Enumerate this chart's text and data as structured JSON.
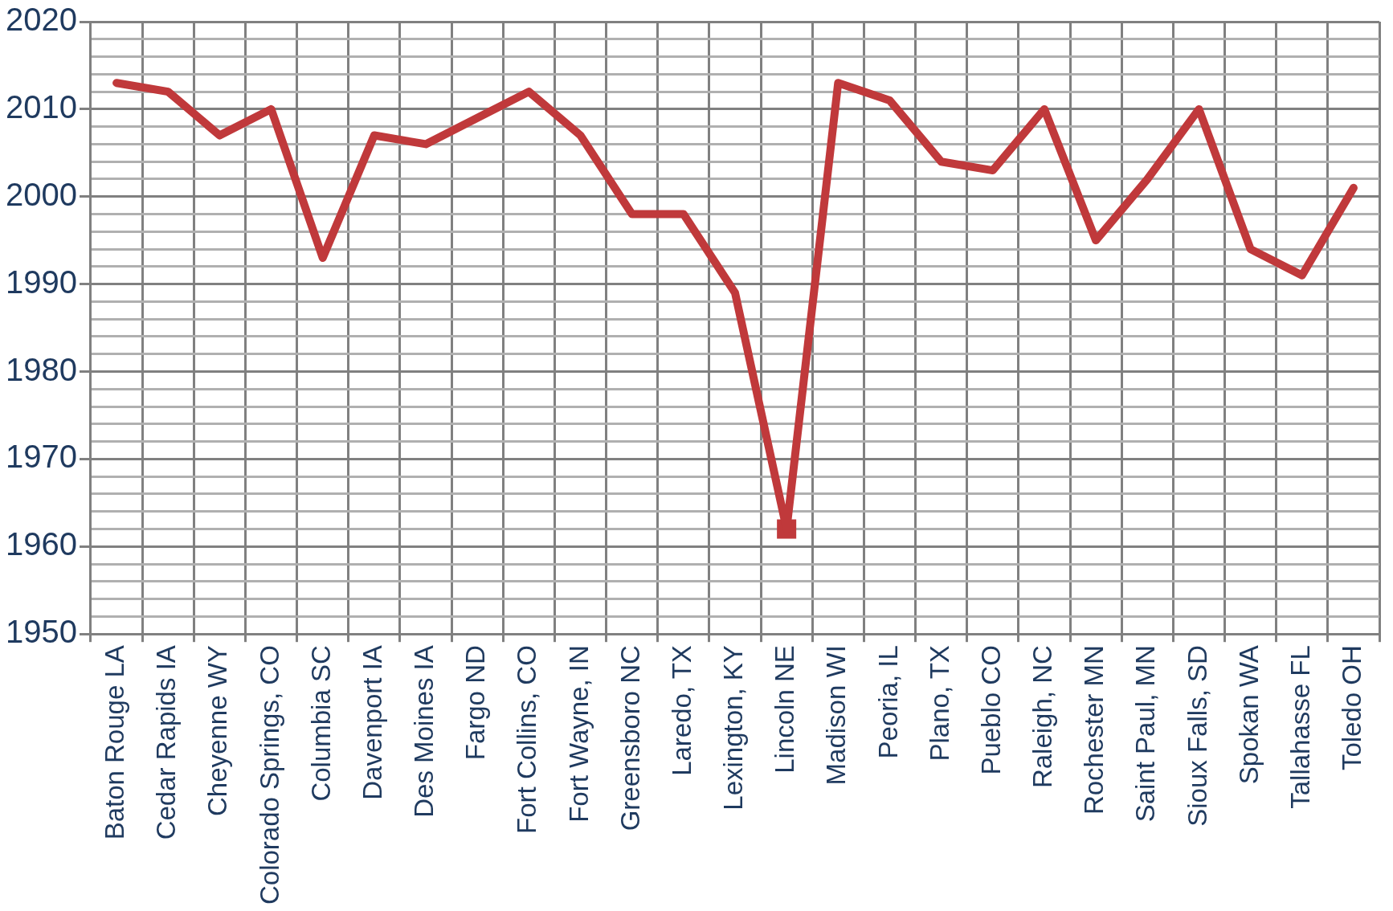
{
  "chart_data": {
    "type": "line",
    "categories": [
      "Baton Rouge LA",
      "Cedar Rapids IA",
      "Cheyenne WY",
      "Colorado Springs, CO",
      "Columbia SC",
      "Davenport IA",
      "Des Moines IA",
      "Fargo ND",
      "Fort Collins, CO",
      "Fort Wayne, IN",
      "Greensboro NC",
      "Laredo, TX",
      "Lexington, KY",
      "Lincoln NE",
      "Madison WI",
      "Peoria, IL",
      "Plano, TX",
      "Pueblo CO",
      "Raleigh, NC",
      "Rochester MN",
      "Saint Paul, MN",
      "Sioux Falls, SD",
      "Spokan WA",
      "Tallahasse FL",
      "Toledo OH"
    ],
    "series": [
      {
        "color": "#c0393b",
        "marker": "none",
        "values": [
          2013,
          2012,
          2007,
          2010,
          1993,
          2007,
          2006,
          2009,
          2012,
          2007,
          1998,
          1998,
          1989,
          1962,
          2013,
          2011,
          2004,
          2003,
          2010,
          1995,
          2002,
          2010,
          1994,
          1991,
          2001
        ]
      },
      {
        "type": "scatter",
        "color": "#c0393b",
        "marker": "square",
        "x": [
          "Lincoln NE"
        ],
        "values": [
          1962
        ]
      }
    ],
    "ylim": [
      1950,
      2020
    ],
    "yticks": [
      1950,
      {
        "value": 1952,
        "label": null
      },
      {
        "value": 1954,
        "label": null
      },
      {
        "value": 1956,
        "label": null
      },
      {
        "value": 1958,
        "label": null
      },
      1960,
      {
        "value": 1962,
        "label": null
      },
      {
        "value": 1964,
        "label": null
      },
      {
        "value": 1966,
        "label": null
      },
      {
        "value": 1968,
        "label": null
      },
      1970,
      {
        "value": 1972,
        "label": null
      },
      {
        "value": 1974,
        "label": null
      },
      {
        "value": 1976,
        "label": null
      },
      {
        "value": 1978,
        "label": null
      },
      1980,
      {
        "value": 1982,
        "label": null
      },
      {
        "value": 1984,
        "label": null
      },
      {
        "value": 1986,
        "label": null
      },
      {
        "value": 1988,
        "label": null
      },
      1990,
      {
        "value": 1992,
        "label": null
      },
      {
        "value": 1994,
        "label": null
      },
      {
        "value": 1996,
        "label": null
      },
      {
        "value": 1998,
        "label": null
      },
      2000,
      {
        "value": 2002,
        "label": null
      },
      {
        "value": 2004,
        "label": null
      },
      {
        "value": 2006,
        "label": null
      },
      {
        "value": 2008,
        "label": null
      },
      2010,
      {
        "value": 2012,
        "label": null
      },
      {
        "value": 2014,
        "label": null
      },
      {
        "value": 2016,
        "label": null
      },
      {
        "value": 2018,
        "label": null
      },
      2020
    ],
    "grid": true,
    "legend": false
  }
}
